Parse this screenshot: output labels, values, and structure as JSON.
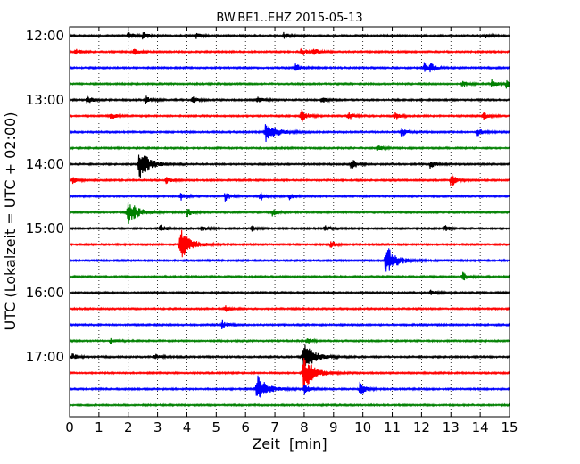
{
  "chart_data": {
    "type": "line",
    "title": "BW.BE1..EHZ 2015-05-13",
    "xlabel": "Zeit  [min]",
    "ylabel": "UTC (Lokalzeit = UTC + 02:00)",
    "xlim": [
      0,
      15
    ],
    "x_ticks": [
      "0",
      "1",
      "2",
      "3",
      "4",
      "5",
      "6",
      "7",
      "8",
      "9",
      "10",
      "11",
      "12",
      "13",
      "14",
      "15"
    ],
    "y_ticks": [
      "12:00",
      "13:00",
      "14:00",
      "15:00",
      "16:00",
      "17:00"
    ],
    "grid": "vertical dotted",
    "trace_colors": [
      "#000000",
      "#ff0000",
      "#0000ff",
      "#008000"
    ],
    "traces": [
      {
        "start": "12:00",
        "events": [
          [
            2.0,
            0.25
          ],
          [
            2.5,
            0.3
          ],
          [
            4.3,
            0.2
          ],
          [
            7.3,
            0.2
          ],
          [
            14.2,
            0.2
          ]
        ]
      },
      {
        "start": "12:15",
        "events": [
          [
            0.2,
            0.2
          ],
          [
            2.2,
            0.25
          ],
          [
            7.9,
            0.3
          ],
          [
            8.3,
            0.3
          ]
        ]
      },
      {
        "start": "12:30",
        "events": [
          [
            7.7,
            0.35
          ],
          [
            12.1,
            0.3
          ],
          [
            12.3,
            0.3
          ]
        ]
      },
      {
        "start": "12:45",
        "events": [
          [
            13.4,
            0.25
          ],
          [
            14.4,
            0.25
          ],
          [
            14.9,
            0.3
          ]
        ]
      },
      {
        "start": "13:00",
        "events": [
          [
            0.6,
            0.3
          ],
          [
            2.6,
            0.25
          ],
          [
            4.2,
            0.2
          ],
          [
            6.4,
            0.25
          ],
          [
            8.6,
            0.2
          ]
        ]
      },
      {
        "start": "13:15",
        "events": [
          [
            1.4,
            0.25
          ],
          [
            7.9,
            0.5
          ],
          [
            9.5,
            0.3
          ],
          [
            11.1,
            0.25
          ],
          [
            14.1,
            0.25
          ]
        ]
      },
      {
        "start": "13:30",
        "events": [
          [
            6.7,
            0.7
          ],
          [
            11.3,
            0.35
          ],
          [
            13.9,
            0.3
          ]
        ]
      },
      {
        "start": "13:45",
        "events": [
          [
            10.5,
            0.2
          ]
        ]
      },
      {
        "start": "14:00",
        "events": [
          [
            2.4,
            1.0
          ],
          [
            9.6,
            0.45
          ],
          [
            12.3,
            0.3
          ]
        ]
      },
      {
        "start": "14:15",
        "events": [
          [
            0.1,
            0.25
          ],
          [
            3.3,
            0.25
          ],
          [
            13.0,
            0.5
          ]
        ]
      },
      {
        "start": "14:30",
        "events": [
          [
            3.8,
            0.25
          ],
          [
            5.3,
            0.35
          ],
          [
            6.5,
            0.3
          ],
          [
            7.5,
            0.2
          ]
        ]
      },
      {
        "start": "14:45",
        "events": [
          [
            2.0,
            0.8
          ],
          [
            4.0,
            0.3
          ],
          [
            6.9,
            0.25
          ]
        ]
      },
      {
        "start": "15:00",
        "events": [
          [
            3.1,
            0.3
          ],
          [
            4.5,
            0.2
          ],
          [
            6.2,
            0.2
          ],
          [
            8.7,
            0.2
          ],
          [
            12.8,
            0.2
          ]
        ]
      },
      {
        "start": "15:15",
        "events": [
          [
            3.8,
            1.0
          ],
          [
            8.9,
            0.3
          ]
        ]
      },
      {
        "start": "15:30",
        "events": [
          [
            10.8,
            1.0
          ]
        ]
      },
      {
        "start": "15:45",
        "events": [
          [
            13.4,
            0.3
          ]
        ]
      },
      {
        "start": "16:00",
        "events": [
          [
            12.3,
            0.2
          ]
        ]
      },
      {
        "start": "16:15",
        "events": [
          [
            5.3,
            0.2
          ]
        ]
      },
      {
        "start": "16:30",
        "events": [
          [
            5.2,
            0.3
          ]
        ]
      },
      {
        "start": "16:45",
        "events": [
          [
            1.4,
            0.2
          ],
          [
            8.1,
            0.2
          ]
        ]
      },
      {
        "start": "17:00",
        "events": [
          [
            0.1,
            0.2
          ],
          [
            2.9,
            0.2
          ],
          [
            8.0,
            1.0
          ]
        ]
      },
      {
        "start": "17:15",
        "events": [
          [
            8.0,
            1.2
          ]
        ]
      },
      {
        "start": "17:30",
        "events": [
          [
            6.4,
            0.9
          ],
          [
            8.0,
            0.35
          ],
          [
            9.9,
            0.5
          ]
        ]
      },
      {
        "start": "17:45",
        "events": []
      }
    ]
  }
}
